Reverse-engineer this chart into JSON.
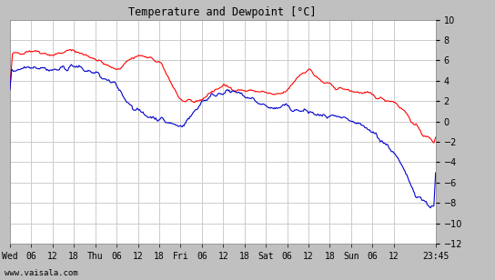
{
  "title": "Temperature and Dewpoint [°C]",
  "ylim": [
    -12,
    10
  ],
  "yticks": [
    -12,
    -10,
    -8,
    -6,
    -4,
    -2,
    0,
    2,
    4,
    6,
    8,
    10
  ],
  "bg_color": "#c0c0c0",
  "plot_bg_color": "#ffffff",
  "grid_color": "#cccccc",
  "temp_color": "#ff0000",
  "dewp_color": "#0000cc",
  "watermark": "www.vaisala.com",
  "xtick_labels": [
    "Wed",
    "06",
    "12",
    "18",
    "Thu",
    "06",
    "12",
    "18",
    "Fri",
    "06",
    "12",
    "18",
    "Sat",
    "06",
    "12",
    "18",
    "Sun",
    "06",
    "12",
    "23:45"
  ],
  "xtick_positions": [
    0,
    6,
    12,
    18,
    24,
    30,
    36,
    42,
    48,
    54,
    60,
    66,
    72,
    78,
    84,
    90,
    96,
    102,
    108,
    119.75
  ],
  "xlim": [
    0,
    119.75
  ],
  "n_points": 500,
  "temp_knots_x": [
    0,
    3,
    6,
    9,
    12,
    15,
    18,
    21,
    24,
    27,
    30,
    33,
    36,
    39,
    42,
    45,
    48,
    51,
    54,
    57,
    60,
    63,
    66,
    69,
    72,
    75,
    78,
    81,
    84,
    87,
    90,
    93,
    96,
    99,
    102,
    105,
    108,
    111,
    114,
    117,
    119.75
  ],
  "temp_knots_y": [
    6.5,
    6.8,
    7.0,
    6.8,
    6.5,
    6.8,
    7.0,
    6.5,
    6.2,
    5.5,
    5.0,
    6.0,
    6.5,
    6.2,
    5.8,
    4.0,
    2.0,
    1.8,
    2.2,
    3.0,
    3.5,
    3.2,
    3.0,
    3.0,
    2.8,
    2.5,
    3.0,
    4.5,
    5.2,
    4.0,
    3.5,
    3.2,
    3.0,
    2.8,
    2.5,
    2.2,
    2.0,
    1.0,
    -0.5,
    -1.5,
    -2.2
  ],
  "dewp_knots_x": [
    0,
    3,
    6,
    9,
    12,
    15,
    18,
    21,
    24,
    27,
    30,
    33,
    36,
    39,
    42,
    45,
    48,
    51,
    54,
    57,
    60,
    63,
    66,
    69,
    72,
    75,
    78,
    81,
    84,
    87,
    90,
    93,
    96,
    99,
    102,
    105,
    108,
    111,
    114,
    117,
    119.75
  ],
  "dewp_knots_y": [
    5.0,
    5.2,
    5.5,
    5.3,
    5.0,
    5.2,
    5.5,
    5.0,
    4.8,
    4.0,
    3.5,
    2.0,
    1.0,
    0.5,
    0.3,
    -0.2,
    -0.5,
    0.5,
    2.0,
    2.5,
    3.0,
    2.8,
    2.5,
    2.0,
    1.5,
    1.2,
    1.5,
    1.0,
    1.0,
    0.5,
    0.5,
    0.2,
    0.0,
    -0.5,
    -1.0,
    -2.0,
    -3.0,
    -5.0,
    -7.0,
    -8.0,
    -8.5
  ]
}
